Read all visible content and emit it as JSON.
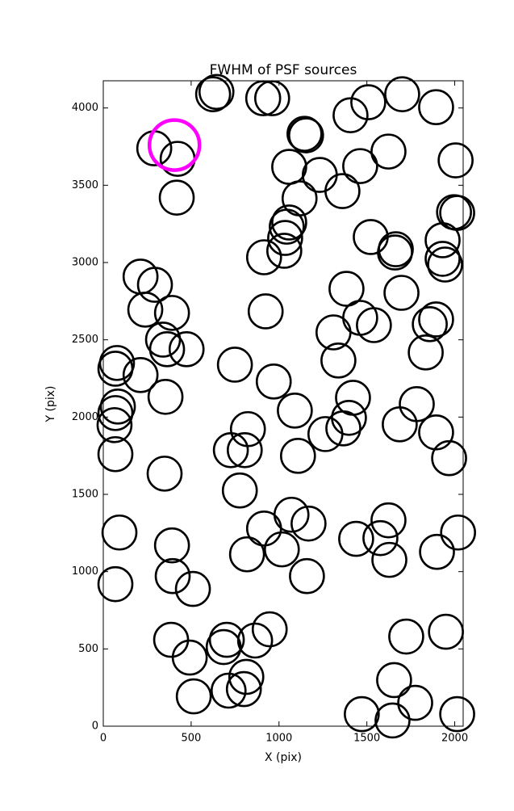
{
  "chart_data": {
    "type": "scatter",
    "title": "FWHM of PSF sources",
    "x_label": "X (pix)",
    "y_label": "Y (pix)",
    "xlim": [
      0,
      2048
    ],
    "ylim": [
      0,
      4176
    ],
    "xticks": [
      0,
      500,
      1000,
      1500,
      2000
    ],
    "yticks": [
      0,
      500,
      1000,
      1500,
      2000,
      2500,
      3000,
      3500,
      4000
    ],
    "series": [
      {
        "color": "#000000",
        "x": [
          78,
          69,
          83,
          69,
          64,
          69,
          92,
          69,
          290,
          423,
          418,
          625,
          644,
          910,
          961,
          1407,
          1508,
          1701,
          1894,
          2005,
          1623,
          1462,
          1145,
          1154,
          1058,
          1117,
          1232,
          1361,
          1058,
          1044,
          915,
          1030,
          1035,
          1522,
          1665,
          1660,
          1931,
          1996,
          2014,
          1931,
          1945,
          212,
          294,
          239,
          391,
          340,
          363,
          474,
          749,
          354,
          924,
          1384,
          1697,
          1462,
          1310,
          1540,
          1894,
          1858,
          1835,
          1338,
          212,
          970,
          1090,
          1421,
          1398,
          1366,
          1264,
          1687,
          1784,
          1894,
          1968,
          1108,
          823,
          726,
          805,
          349,
          777,
          391,
          395,
          510,
          915,
          1071,
          1168,
          818,
          1016,
          1159,
          1439,
          1577,
          1623,
          1628,
          1899,
          2019,
          386,
          492,
          685,
          703,
          864,
          947,
          814,
          800,
          713,
          515,
          1724,
          1950,
          1655,
          1775,
          1471,
          1646,
          2014
        ],
        "values": [
          2350,
          2313,
          2068,
          2026,
          1948,
          1760,
          1253,
          919,
          3739,
          3671,
          3420,
          4089,
          4104,
          4063,
          4063,
          3953,
          4037,
          4089,
          4005,
          3661,
          3718,
          3624,
          3833,
          3823,
          3619,
          3415,
          3567,
          3462,
          3259,
          3232,
          3034,
          3076,
          3159,
          3165,
          3086,
          3065,
          3144,
          3326,
          3321,
          3024,
          2987,
          2909,
          2856,
          2695,
          2674,
          2501,
          2439,
          2439,
          2339,
          2131,
          2684,
          2830,
          2804,
          2642,
          2548,
          2595,
          2632,
          2601,
          2418,
          2366,
          2272,
          2230,
          2042,
          2125,
          1995,
          1927,
          1890,
          1953,
          2084,
          1901,
          1734,
          1749,
          1922,
          1786,
          1786,
          1634,
          1525,
          1170,
          971,
          888,
          1279,
          1368,
          1311,
          1112,
          1144,
          971,
          1212,
          1217,
          1332,
          1076,
          1128,
          1253,
          559,
          444,
          512,
          559,
          554,
          627,
          319,
          240,
          230,
          193,
          580,
          611,
          298,
          151,
          78,
          37,
          78
        ]
      },
      {
        "color": "#ff00ff",
        "x": [
          405
        ],
        "values": [
          3760
        ]
      }
    ]
  }
}
